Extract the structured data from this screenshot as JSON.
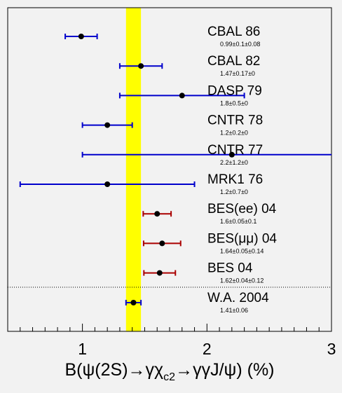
{
  "chart_data": {
    "type": "scatter",
    "orientation": "horizontal",
    "title": "",
    "xlabel": "B(ψ(2S)→γχc2→γγJ/ψ) (%)",
    "xlabel_parts": {
      "main": "B(ψ(2S)→γχ",
      "sub": "c2",
      "rest": "→γγJ/ψ) (%)"
    },
    "xlim": [
      0.4,
      3.0
    ],
    "xticks": [
      {
        "value": 1,
        "label": "1"
      },
      {
        "value": 2,
        "label": "2"
      },
      {
        "value": 3,
        "label": "3"
      }
    ],
    "average_band": {
      "low": 1.35,
      "high": 1.47,
      "color": "#ffff00"
    },
    "colors": {
      "old": "#0000cc",
      "bes": "#aa0000",
      "average": "#0000cc",
      "marker": "#000000"
    },
    "measurements": [
      {
        "name": "CBAL 86",
        "value": 0.99,
        "err_stat": 0.1,
        "err_sys": 0.08,
        "text": "0.99±0.1±0.08",
        "group": "old"
      },
      {
        "name": "CBAL 82",
        "value": 1.47,
        "err_stat": 0.17,
        "err_sys": 0.0,
        "text": "1.47±0.17±0",
        "group": "old"
      },
      {
        "name": "DASP 79",
        "value": 1.8,
        "err_stat": 0.5,
        "err_sys": 0.0,
        "text": "1.8±0.5±0",
        "group": "old"
      },
      {
        "name": "CNTR 78",
        "value": 1.2,
        "err_stat": 0.2,
        "err_sys": 0.0,
        "text": "1.2±0.2±0",
        "group": "old"
      },
      {
        "name": "CNTR 77",
        "value": 2.2,
        "err_stat": 1.2,
        "err_sys": 0.0,
        "text": "2.2±1.2±0",
        "group": "old"
      },
      {
        "name": "MRK1 76",
        "value": 1.2,
        "err_stat": 0.7,
        "err_sys": 0.0,
        "text": "1.2±0.7±0",
        "group": "old"
      },
      {
        "name": "BES(ee) 04",
        "value": 1.6,
        "err_stat": 0.05,
        "err_sys": 0.1,
        "text": "1.6±0.05±0.1",
        "group": "bes"
      },
      {
        "name": "BES(μμ) 04",
        "value": 1.64,
        "err_stat": 0.05,
        "err_sys": 0.14,
        "text": "1.64±0.05±0.14",
        "group": "bes"
      },
      {
        "name": "BES 04",
        "value": 1.62,
        "err_stat": 0.04,
        "err_sys": 0.12,
        "text": "1.62±0.04±0.12",
        "group": "bes"
      }
    ],
    "average": {
      "name": "W.A. 2004",
      "value": 1.41,
      "err": 0.06,
      "text": "1.41±0.06",
      "group": "average"
    },
    "grid": false,
    "legend": "none"
  }
}
